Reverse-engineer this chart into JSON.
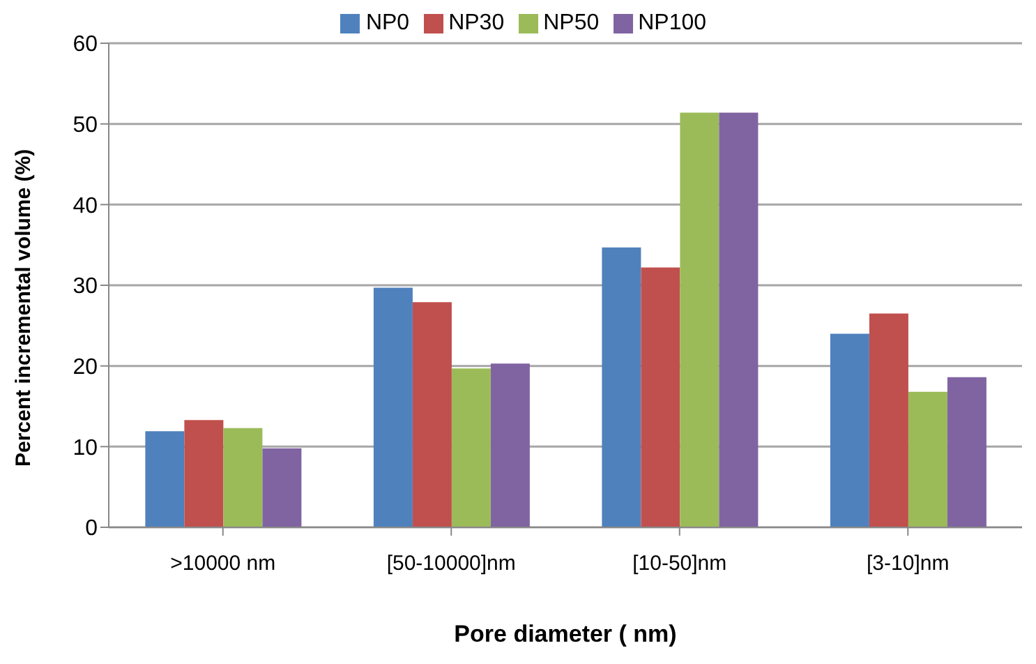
{
  "chart_data": {
    "type": "bar",
    "xlabel": "Pore diameter ( nm)",
    "ylabel": "Percent incremental volume (%)",
    "categories": [
      ">10000 nm",
      "[50-10000]nm",
      "[10-50]nm",
      "[3-10]nm"
    ],
    "series": [
      {
        "name": "NP0",
        "color": "#4f81bd",
        "values": [
          11.9,
          29.7,
          34.7,
          24.0
        ]
      },
      {
        "name": "NP30",
        "color": "#c0504d",
        "values": [
          13.3,
          27.9,
          32.2,
          26.5
        ]
      },
      {
        "name": "NP50",
        "color": "#9bbb59",
        "values": [
          12.3,
          19.7,
          51.4,
          16.8
        ]
      },
      {
        "name": "NP100",
        "color": "#8064a2",
        "values": [
          9.8,
          20.3,
          51.4,
          18.6
        ]
      }
    ],
    "ylim": [
      0,
      60
    ],
    "yticks": [
      0,
      10,
      20,
      30,
      40,
      50,
      60
    ],
    "grid": "y",
    "legend": "top"
  }
}
